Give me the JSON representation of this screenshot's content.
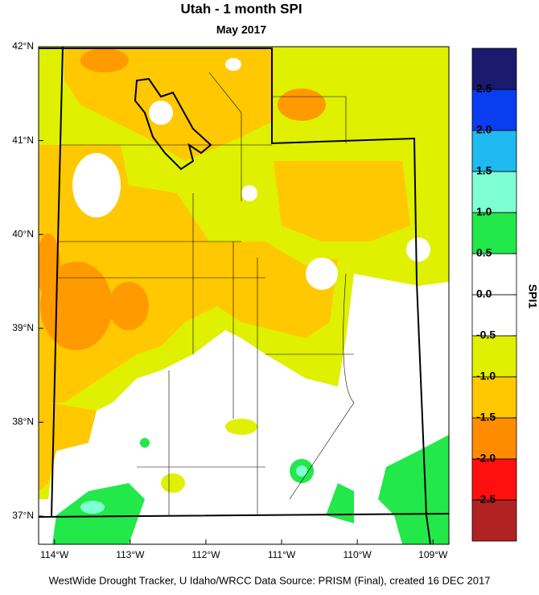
{
  "title": "Utah - 1 month SPI",
  "subtitle": "May 2017",
  "map": {
    "xlim": [
      -114.21,
      -108.79
    ],
    "ylim": [
      36.7,
      42
    ],
    "xticks": [
      {
        "value": -114,
        "label": "114°W"
      },
      {
        "value": -113,
        "label": "113°W"
      },
      {
        "value": -112,
        "label": "112°W"
      },
      {
        "value": -111,
        "label": "111°W"
      },
      {
        "value": -110,
        "label": "110°W"
      },
      {
        "value": -109,
        "label": "109°W"
      }
    ],
    "yticks": [
      {
        "value": 37,
        "label": "37°N"
      },
      {
        "value": 38,
        "label": "38°N"
      },
      {
        "value": 39,
        "label": "39°N"
      },
      {
        "value": 40,
        "label": "40°N"
      },
      {
        "value": 41,
        "label": "41°N"
      },
      {
        "value": 42,
        "label": "42°N"
      }
    ]
  },
  "colorbar": {
    "title": "SPI1",
    "ticks": [
      -2.5,
      {
        "value": -2,
        "label": "-2.0"
      },
      -1.5,
      {
        "value": -1,
        "label": "-1.0"
      },
      -0.5,
      {
        "value": 0,
        "label": "0.0"
      },
      0.5,
      {
        "value": 1,
        "label": "1.0"
      },
      1.5,
      {
        "value": 2,
        "label": "2.0"
      },
      2.5
    ],
    "colors": [
      "#b22222",
      "#ff1010",
      "#ff8c00",
      "#ffc800",
      "#dff000",
      "#ffffff",
      "#ffffff",
      "#22e84a",
      "#7fffd4",
      "#1ebaf0",
      "#0a3cf0",
      "#1a1a6e"
    ]
  },
  "footer": "WestWide Drought Tracker, U Idaho/WRCC Data Source: PRISM (Final), created 16 DEC 2017"
}
